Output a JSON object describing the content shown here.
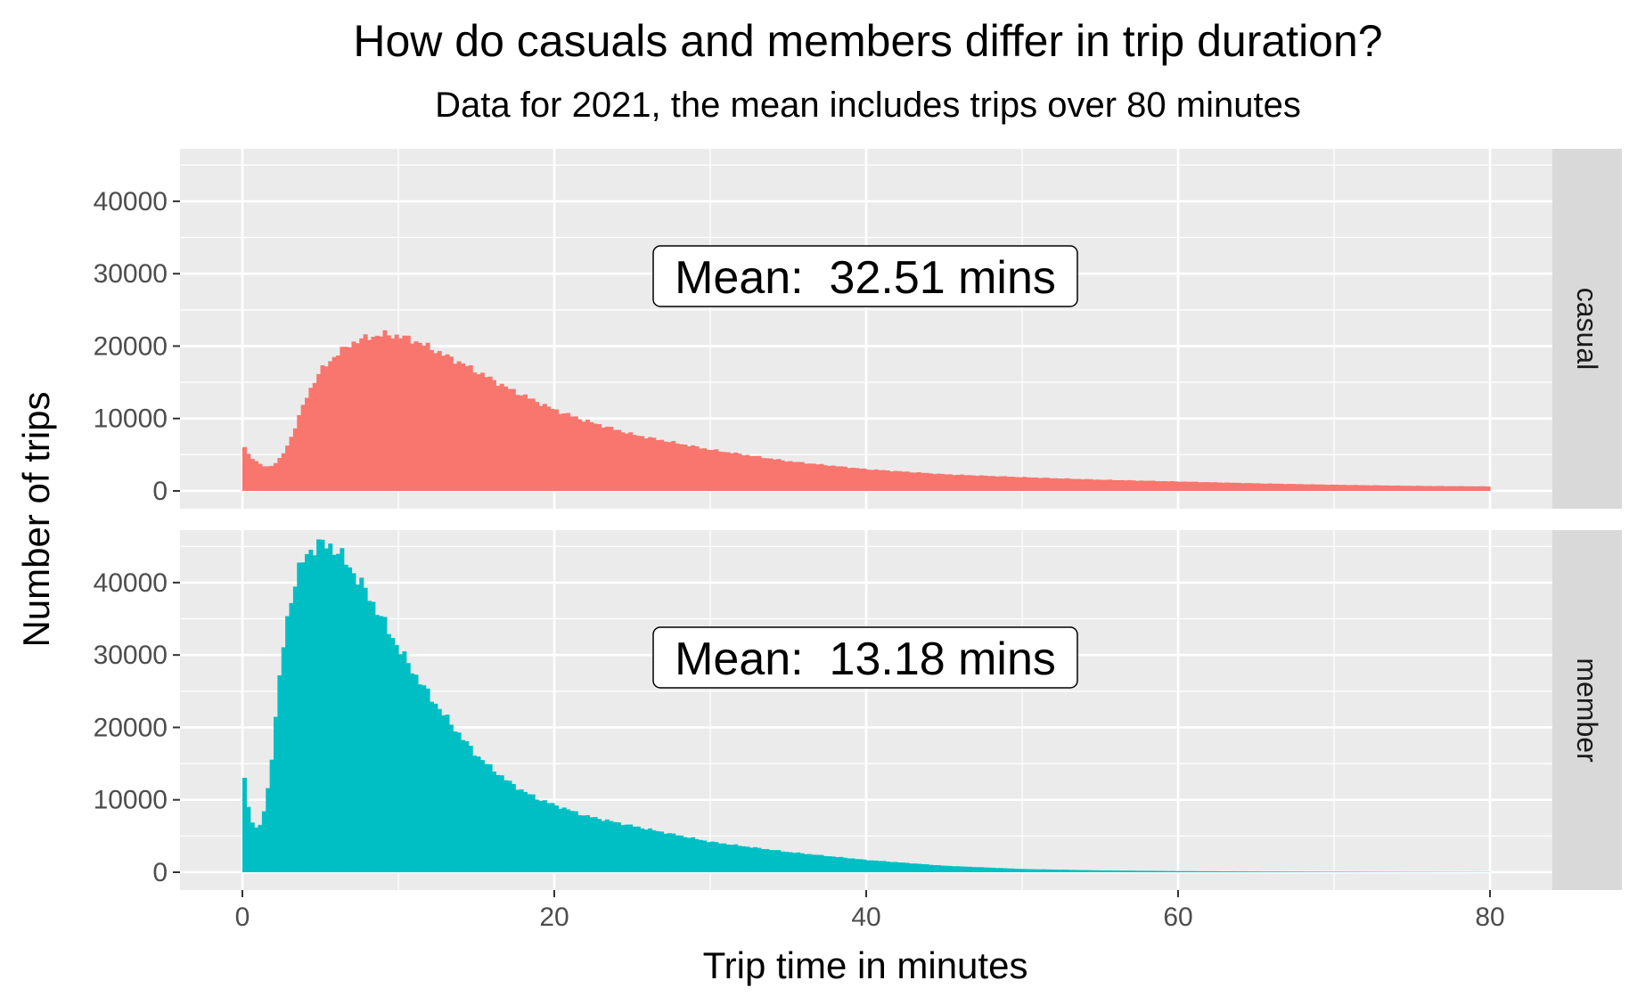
{
  "chart_data": {
    "type": "bar",
    "title": "How do casuals and members differ in trip duration?",
    "subtitle": "Data for 2021, the mean includes trips over 80 minutes",
    "xlabel": "Trip time in minutes",
    "ylabel": "Number of trips",
    "xlim": [
      -4,
      84
    ],
    "ylim": [
      0,
      47000
    ],
    "x_ticks": [
      0,
      20,
      40,
      60,
      80
    ],
    "y_ticks": [
      0,
      10000,
      20000,
      30000,
      40000
    ],
    "grid": true,
    "bin_width_minutes": 0.25,
    "panels": [
      {
        "facet": "casual",
        "color": "#F8766D",
        "mean_label": "Mean:  32.51 mins",
        "profile": {
          "x": [
            0,
            0.25,
            0.5,
            1,
            1.5,
            2,
            2.5,
            3,
            3.5,
            4,
            4.5,
            5,
            6,
            7,
            8,
            9,
            10,
            11,
            12,
            13,
            14,
            15,
            16,
            17,
            18,
            20,
            22,
            25,
            30,
            35,
            40,
            45,
            50,
            55,
            60,
            65,
            70,
            75,
            80
          ],
          "y": [
            6700,
            5400,
            4800,
            3800,
            3300,
            3600,
            4700,
            6800,
            9500,
            12500,
            14700,
            16600,
            18800,
            20400,
            21200,
            21600,
            21400,
            20800,
            19800,
            18700,
            17700,
            16500,
            15400,
            14200,
            13200,
            11200,
            9700,
            7800,
            5700,
            4100,
            3000,
            2300,
            1900,
            1550,
            1300,
            1050,
            850,
            700,
            620
          ]
        }
      },
      {
        "facet": "member",
        "color": "#00BFC4",
        "mean_label": "Mean:  13.18 mins",
        "profile": {
          "x": [
            0,
            0.25,
            0.5,
            0.75,
            1,
            1.25,
            1.5,
            1.75,
            2,
            2.25,
            2.5,
            3,
            3.5,
            4,
            4.5,
            5,
            5.5,
            6,
            6.5,
            7,
            8,
            9,
            10,
            11,
            12,
            13,
            14,
            15,
            16,
            17,
            18,
            19,
            20,
            22,
            25,
            30,
            35,
            40,
            45,
            50,
            55,
            60,
            65,
            70,
            75,
            80
          ],
          "y": [
            15200,
            10500,
            7800,
            6200,
            5900,
            7200,
            9600,
            13500,
            18500,
            24000,
            29500,
            36800,
            41000,
            43600,
            44800,
            45300,
            45200,
            44500,
            43200,
            41800,
            38500,
            34800,
            31000,
            27500,
            24400,
            21500,
            18800,
            16200,
            14300,
            12600,
            11200,
            10100,
            9300,
            7800,
            6400,
            4200,
            2800,
            1700,
            900,
            450,
            260,
            160,
            100,
            70,
            45,
            30
          ]
        }
      }
    ]
  }
}
